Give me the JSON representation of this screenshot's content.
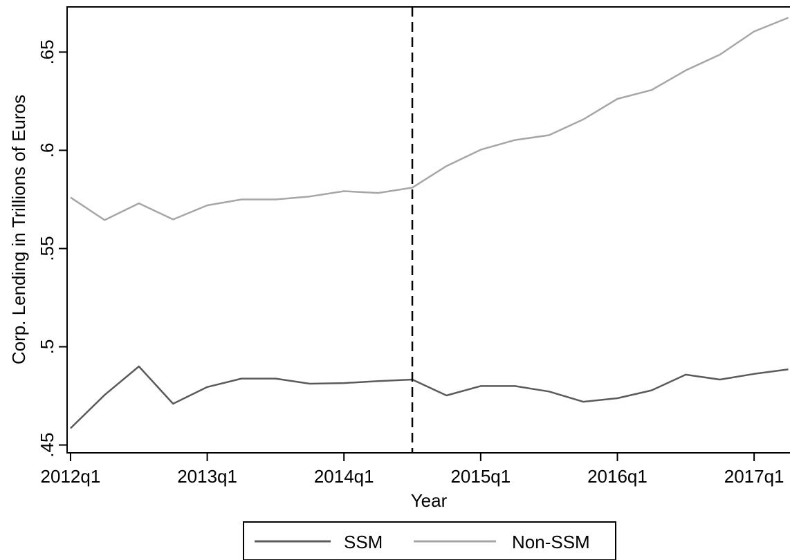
{
  "chart_data": {
    "type": "line",
    "title": "",
    "xlabel": "Year",
    "ylabel": "Corp. Lending in Trillions of Euros",
    "x": [
      "2012q1",
      "2012q2",
      "2012q3",
      "2012q4",
      "2013q1",
      "2013q2",
      "2013q3",
      "2013q4",
      "2014q1",
      "2014q2",
      "2014q3",
      "2014q4",
      "2015q1",
      "2015q2",
      "2015q3",
      "2015q4",
      "2016q1",
      "2016q2",
      "2016q3",
      "2016q4",
      "2017q1",
      "2017q2"
    ],
    "x_index": [
      0,
      1,
      2,
      3,
      4,
      5,
      6,
      7,
      8,
      9,
      10,
      11,
      12,
      13,
      14,
      15,
      16,
      17,
      18,
      19,
      20,
      21
    ],
    "xticks": [
      {
        "label": "2012q1",
        "index": 0
      },
      {
        "label": "2013q1",
        "index": 4
      },
      {
        "label": "2014q1",
        "index": 8
      },
      {
        "label": "2015q1",
        "index": 12
      },
      {
        "label": "2016q1",
        "index": 16
      },
      {
        "label": "2017q1",
        "index": 20
      }
    ],
    "yticks": [
      {
        "label": ".45",
        "value": 0.45
      },
      {
        "label": ".5",
        "value": 0.5
      },
      {
        "label": ".55",
        "value": 0.55
      },
      {
        "label": ".6",
        "value": 0.6
      },
      {
        "label": ".65",
        "value": 0.65
      }
    ],
    "xlim": [
      -0.1,
      21.05
    ],
    "ylim": [
      0.446,
      0.673
    ],
    "vline": {
      "index": 10,
      "style": "dashed"
    },
    "grid": false,
    "legend": "bottom",
    "series": [
      {
        "name": "SSM",
        "color": "#5a5a5a",
        "values": [
          0.4585,
          0.4755,
          0.49,
          0.471,
          0.4795,
          0.4838,
          0.4838,
          0.4812,
          0.4815,
          0.4825,
          0.4833,
          0.4752,
          0.48,
          0.48,
          0.4772,
          0.472,
          0.4738,
          0.4778,
          0.4858,
          0.4833,
          0.4862,
          0.4885
        ]
      },
      {
        "name": "Non-SSM",
        "color": "#a6a6a6",
        "values": [
          0.576,
          0.5645,
          0.573,
          0.5648,
          0.572,
          0.575,
          0.575,
          0.5765,
          0.5792,
          0.5783,
          0.581,
          0.592,
          0.6003,
          0.6052,
          0.6077,
          0.6157,
          0.6262,
          0.6307,
          0.6407,
          0.6487,
          0.6605,
          0.6675
        ]
      }
    ]
  }
}
